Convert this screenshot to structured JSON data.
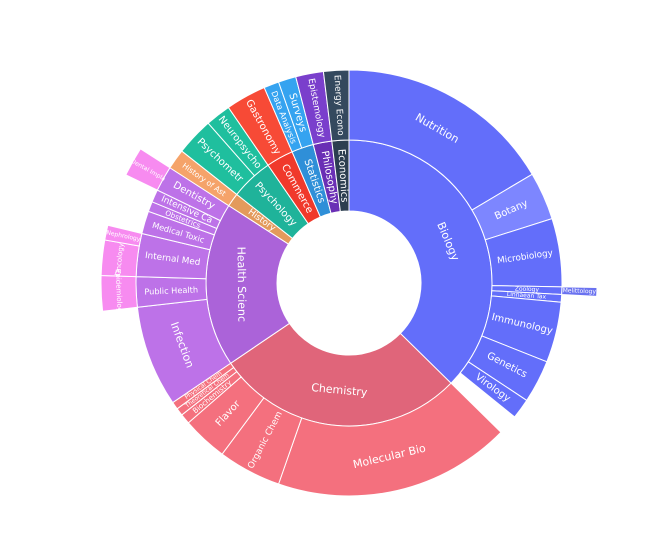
{
  "chart_data": {
    "type": "sunburst",
    "title": "",
    "nodes": [
      {
        "id": "Biology",
        "label": "Biology",
        "parent": "",
        "value": 195,
        "color": "#636efa"
      },
      {
        "id": "Nutrition",
        "label": "Nutrition",
        "parent": "Biology",
        "value": 86,
        "color": "#636efa"
      },
      {
        "id": "Botany",
        "label": "Botany",
        "parent": "Biology",
        "value": 19,
        "color": "#7d86ff"
      },
      {
        "id": "Microbiology",
        "label": "Microbiology",
        "parent": "Biology",
        "value": 27,
        "color": "#636efa"
      },
      {
        "id": "Zoology",
        "label": "Zoology",
        "parent": "Biology",
        "value": 3,
        "color": "#636efa"
      },
      {
        "id": "Linnaean Tax",
        "label": "Linnaean Tax",
        "parent": "Biology",
        "value": 3,
        "color": "#636efa"
      },
      {
        "id": "Melittology",
        "label": "Melittology",
        "parent": "Zoology",
        "value": 3,
        "color": "#6a72f0"
      },
      {
        "id": "Immunology",
        "label": "Immunology",
        "parent": "Biology",
        "value": 24,
        "color": "#636efa"
      },
      {
        "id": "Genetics",
        "label": "Genetics",
        "parent": "Biology",
        "value": 17,
        "color": "#636efa"
      },
      {
        "id": "Virology",
        "label": "Virology",
        "parent": "Biology",
        "value": 8,
        "color": "#636efa"
      },
      {
        "id": "Chemistry",
        "label": "Chemistry",
        "parent": "",
        "value": 147,
        "color": "#e0657a"
      },
      {
        "id": "Molecular Bio",
        "label": "Molecular Bio",
        "parent": "Chemistry",
        "value": 94,
        "color": "#f4707e"
      },
      {
        "id": "Organic Chem",
        "label": "Organic Chem",
        "parent": "Chemistry",
        "value": 25,
        "color": "#f4707e"
      },
      {
        "id": "Flavor",
        "label": "Flavor",
        "parent": "Chemistry",
        "value": 18,
        "color": "#f4707e"
      },
      {
        "id": "Biochemistry",
        "label": "Biochemistry",
        "parent": "Chemistry",
        "value": 4,
        "color": "#f4707e"
      },
      {
        "id": "Theoretical Chem",
        "label": "Theoretical Chem",
        "parent": "Chemistry",
        "value": 3,
        "color": "#f4707e"
      },
      {
        "id": "Physical Chem",
        "label": "Physical Chem",
        "parent": "Chemistry",
        "value": 3,
        "color": "#f4707e"
      },
      {
        "id": "Health Scienc",
        "label": "Health Scienc",
        "parent": "",
        "value": 97,
        "color": "#ab63d9"
      },
      {
        "id": "Infection",
        "label": "Infection",
        "parent": "Health Scienc",
        "value": 40,
        "color": "#bd72e8"
      },
      {
        "id": "Public Health",
        "label": "Public Health",
        "parent": "Health Scienc",
        "value": 12,
        "color": "#bd72e8"
      },
      {
        "id": "Epidemiology",
        "label": "Epidemiology",
        "parent": "Public Health",
        "value": 12,
        "color": "#f78bf0"
      },
      {
        "id": "Internal Med",
        "label": "Internal Med",
        "parent": "Health Scienc",
        "value": 17,
        "color": "#bd72e8"
      },
      {
        "id": "Oncology",
        "label": "Oncology",
        "parent": "Internal Med",
        "value": 12,
        "color": "#f78bf0"
      },
      {
        "id": "Nephrology",
        "label": "Nephrology",
        "parent": "Internal Med",
        "value": 5,
        "color": "#f78bf0"
      },
      {
        "id": "Medical Toxic",
        "label": "Medical Toxic",
        "parent": "Health Scienc",
        "value": 9,
        "color": "#bd72e8"
      },
      {
        "id": "Obstetrics",
        "label": "Obstetrics",
        "parent": "Health Scienc",
        "value": 4,
        "color": "#bd72e8"
      },
      {
        "id": "Intensive Ca",
        "label": "Intensive Ca",
        "parent": "Health Scienc",
        "value": 5,
        "color": "#bd72e8"
      },
      {
        "id": "Dentistry",
        "label": "Dentistry",
        "parent": "Health Scienc",
        "value": 10,
        "color": "#bd72e8"
      },
      {
        "id": "Dental Implant",
        "label": "Dental Impla",
        "parent": "Dentistry",
        "value": 10,
        "color": "#f78bf0"
      },
      {
        "id": "History",
        "label": "History",
        "parent": "",
        "value": 8,
        "color": "#e39a5c"
      },
      {
        "id": "History of Ast",
        "label": "History of Ast",
        "parent": "History",
        "value": 8,
        "color": "#f5a36a"
      },
      {
        "id": "Psychology",
        "label": "Psychology",
        "parent": "",
        "value": 25,
        "color": "#1fb39a"
      },
      {
        "id": "Psychometr",
        "label": "Psychometr",
        "parent": "Psychology",
        "value": 15,
        "color": "#1fbf9e"
      },
      {
        "id": "Neuropsycho",
        "label": "Neuropsycho",
        "parent": "Psychology",
        "value": 10,
        "color": "#1fbf9e"
      },
      {
        "id": "Commerce",
        "label": "Commerce",
        "parent": "",
        "value": 16,
        "color": "#f0392b"
      },
      {
        "id": "Gastronomy",
        "label": "Gastronomy",
        "parent": "Commerce",
        "value": 16,
        "color": "#f74a36"
      },
      {
        "id": "Statistics",
        "label": "Statistics",
        "parent": "",
        "value": 13,
        "color": "#2f8fd8"
      },
      {
        "id": "Data Analysis",
        "label": "Data Analysis",
        "parent": "Statistics",
        "value": 6,
        "color": "#35a3f0"
      },
      {
        "id": "Surveys",
        "label": "Surveys",
        "parent": "Statistics",
        "value": 7,
        "color": "#35a3f0"
      },
      {
        "id": "Philosophy",
        "label": "Philosophy",
        "parent": "",
        "value": 11,
        "color": "#6a2fb5"
      },
      {
        "id": "Epistemology",
        "label": "Epistemology",
        "parent": "Philosophy",
        "value": 11,
        "color": "#7a3fcc"
      },
      {
        "id": "Economics",
        "label": "Economics",
        "parent": "",
        "value": 10,
        "color": "#2c3e50"
      },
      {
        "id": "Energy Econo",
        "label": "Energy Econo",
        "parent": "Economics",
        "value": 10,
        "color": "#34495e"
      }
    ]
  }
}
